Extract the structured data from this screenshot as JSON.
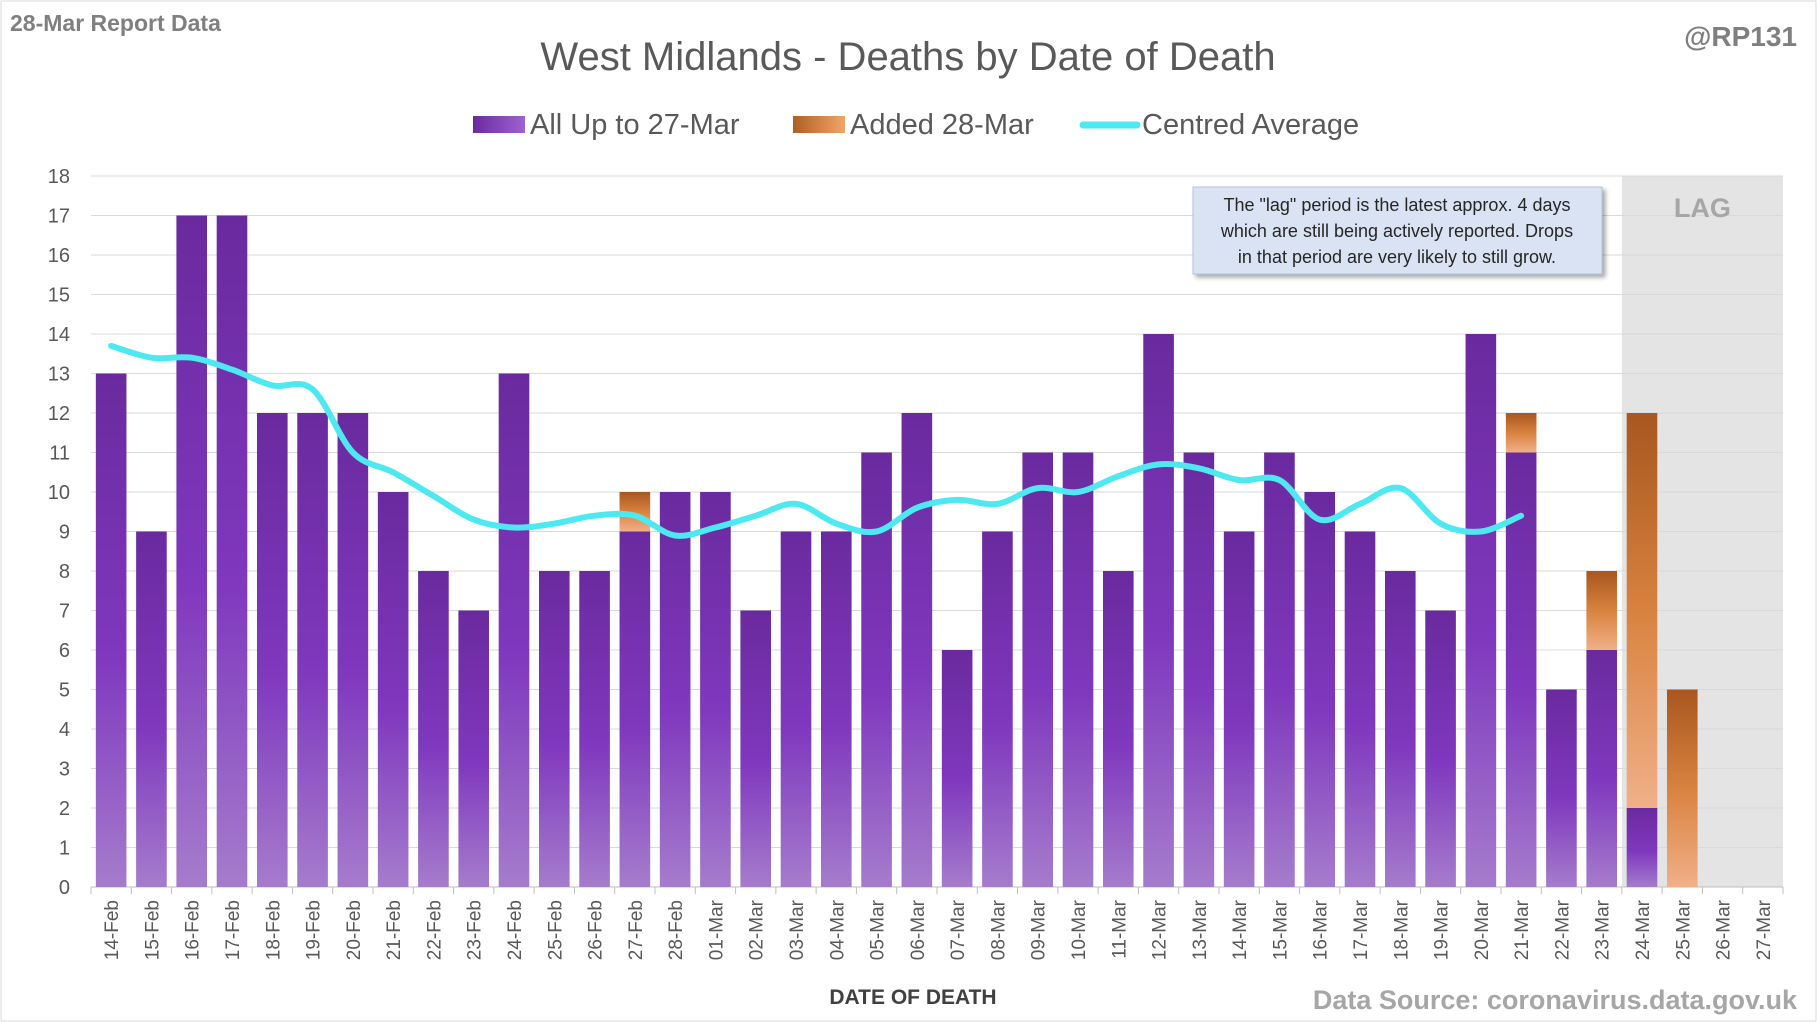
{
  "header": {
    "report_label": "28-Mar Report Data",
    "handle": "@RP131",
    "source": "Data Source: coronavirus.data.gov.uk"
  },
  "chart_data": {
    "type": "bar",
    "stacked": true,
    "title": "West Midlands - Deaths by Date of Death",
    "xlabel": "DATE OF DEATH",
    "ylabel": "",
    "ylim": [
      0,
      18
    ],
    "yticks": [
      0,
      1,
      2,
      3,
      4,
      5,
      6,
      7,
      8,
      9,
      10,
      11,
      12,
      13,
      14,
      15,
      16,
      17,
      18
    ],
    "grid": true,
    "legend_position": "top",
    "categories": [
      "14-Feb",
      "15-Feb",
      "16-Feb",
      "17-Feb",
      "18-Feb",
      "19-Feb",
      "20-Feb",
      "21-Feb",
      "22-Feb",
      "23-Feb",
      "24-Feb",
      "25-Feb",
      "26-Feb",
      "27-Feb",
      "28-Feb",
      "01-Mar",
      "02-Mar",
      "03-Mar",
      "04-Mar",
      "05-Mar",
      "06-Mar",
      "07-Mar",
      "08-Mar",
      "09-Mar",
      "10-Mar",
      "11-Mar",
      "12-Mar",
      "13-Mar",
      "14-Mar",
      "15-Mar",
      "16-Mar",
      "17-Mar",
      "18-Mar",
      "19-Mar",
      "20-Mar",
      "21-Mar",
      "22-Mar",
      "23-Mar",
      "24-Mar",
      "25-Mar",
      "26-Mar",
      "27-Mar"
    ],
    "series": [
      {
        "name": "All Up to 27-Mar",
        "kind": "bar",
        "color": "#7B35B8",
        "values": [
          13,
          9,
          17,
          17,
          12,
          12,
          12,
          10,
          8,
          7,
          13,
          8,
          8,
          9,
          10,
          10,
          7,
          9,
          9,
          11,
          12,
          6,
          9,
          11,
          11,
          8,
          14,
          11,
          9,
          11,
          10,
          9,
          8,
          7,
          14,
          11,
          5,
          6,
          2,
          0,
          0,
          0
        ]
      },
      {
        "name": "Added 28-Mar",
        "kind": "bar",
        "color": "#D2783A",
        "values": [
          0,
          0,
          0,
          0,
          0,
          0,
          0,
          0,
          0,
          0,
          0,
          0,
          0,
          1,
          0,
          0,
          0,
          0,
          0,
          0,
          0,
          0,
          0,
          0,
          0,
          0,
          0,
          0,
          0,
          0,
          0,
          0,
          0,
          0,
          0,
          1,
          0,
          2,
          10,
          5,
          0,
          0
        ]
      },
      {
        "name": "Centred Average",
        "kind": "line",
        "color": "#4DE8F0",
        "values": [
          13.7,
          13.4,
          13.4,
          13.1,
          12.7,
          12.6,
          11.0,
          10.5,
          9.9,
          9.3,
          9.1,
          9.2,
          9.4,
          9.4,
          8.9,
          9.1,
          9.4,
          9.7,
          9.2,
          9.0,
          9.6,
          9.8,
          9.7,
          10.1,
          10.0,
          10.4,
          10.7,
          10.6,
          10.3,
          10.3,
          9.3,
          9.7,
          10.1,
          9.2,
          9.0,
          9.4,
          null,
          null,
          null,
          null,
          null,
          null
        ]
      }
    ],
    "lag": {
      "label": "LAG",
      "start_category": "24-Mar",
      "end_category": "27-Mar",
      "color": "#E4E4E4"
    },
    "annotation": {
      "lines": [
        "The \"lag\" period is the latest approx. 4 days",
        "which are still being actively reported.  Drops",
        "in that period are very likely to still grow."
      ]
    }
  }
}
